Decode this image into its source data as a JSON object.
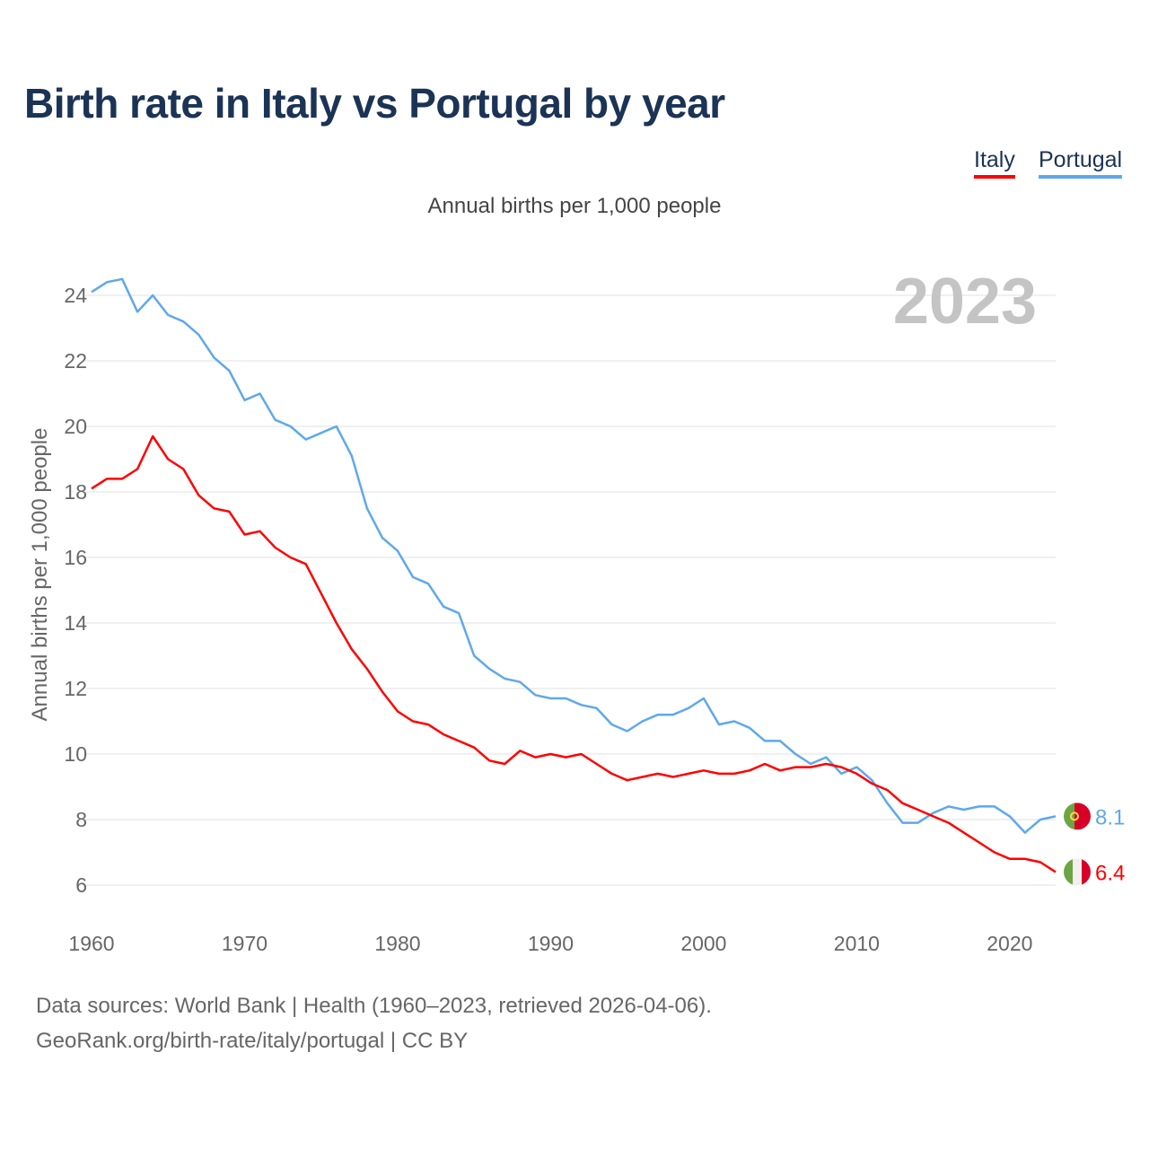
{
  "header": {
    "title": "Birth rate in Italy vs Portugal by year",
    "subtitle": "Annual births per 1,000 people"
  },
  "footer": {
    "sources": "Data sources: World Bank | Health (1960–2023, retrieved 2026-04-06).",
    "credit": "GeoRank.org/birth-rate/italy/portugal | CC BY"
  },
  "chart_data": {
    "type": "line",
    "title": "Birth rate in Italy vs Portugal by year",
    "subtitle": "Annual births per 1,000 people",
    "xlabel": "",
    "ylabel": "Annual births per 1,000 people",
    "year_label": "2023",
    "xlim": [
      1960,
      2023
    ],
    "ylim": [
      5,
      25
    ],
    "x_ticks": [
      1960,
      1970,
      1980,
      1990,
      2000,
      2010,
      2020
    ],
    "y_ticks": [
      6,
      8,
      10,
      12,
      14,
      16,
      18,
      20,
      22,
      24
    ],
    "grid": true,
    "legend_position": "top-right",
    "x_start": 1960,
    "series": [
      {
        "name": "Italy",
        "color": "#ff0000",
        "end_label": "6.4",
        "flag": "italy-flag",
        "values": [
          18.1,
          18.4,
          18.4,
          18.7,
          19.7,
          19.0,
          18.7,
          17.9,
          17.5,
          17.4,
          16.7,
          16.8,
          16.3,
          16.0,
          15.8,
          14.9,
          14.0,
          13.2,
          12.6,
          11.9,
          11.3,
          11.0,
          10.9,
          10.6,
          10.4,
          10.2,
          9.8,
          9.7,
          10.1,
          9.9,
          10.0,
          9.9,
          10.0,
          9.7,
          9.4,
          9.2,
          9.3,
          9.4,
          9.3,
          9.4,
          9.5,
          9.4,
          9.4,
          9.5,
          9.7,
          9.5,
          9.6,
          9.6,
          9.7,
          9.6,
          9.4,
          9.1,
          8.9,
          8.5,
          8.3,
          8.1,
          7.9,
          7.6,
          7.3,
          7.0,
          6.8,
          6.8,
          6.7,
          6.4
        ]
      },
      {
        "name": "Portugal",
        "color": "#5ea8ec",
        "end_label": "8.1",
        "flag": "portugal-flag",
        "values": [
          24.1,
          24.4,
          24.5,
          23.5,
          24.0,
          23.4,
          23.2,
          22.8,
          22.1,
          21.7,
          20.8,
          21.0,
          20.2,
          20.0,
          19.6,
          19.8,
          20.0,
          19.1,
          17.5,
          16.6,
          16.2,
          15.4,
          15.2,
          14.5,
          14.3,
          13.0,
          12.6,
          12.3,
          12.2,
          11.8,
          11.7,
          11.7,
          11.5,
          11.4,
          10.9,
          10.7,
          11.0,
          11.2,
          11.2,
          11.4,
          11.7,
          10.9,
          11.0,
          10.8,
          10.4,
          10.4,
          10.0,
          9.7,
          9.9,
          9.4,
          9.6,
          9.2,
          8.5,
          7.9,
          7.9,
          8.2,
          8.4,
          8.3,
          8.4,
          8.4,
          8.1,
          7.6,
          8.0,
          8.1
        ]
      }
    ]
  }
}
